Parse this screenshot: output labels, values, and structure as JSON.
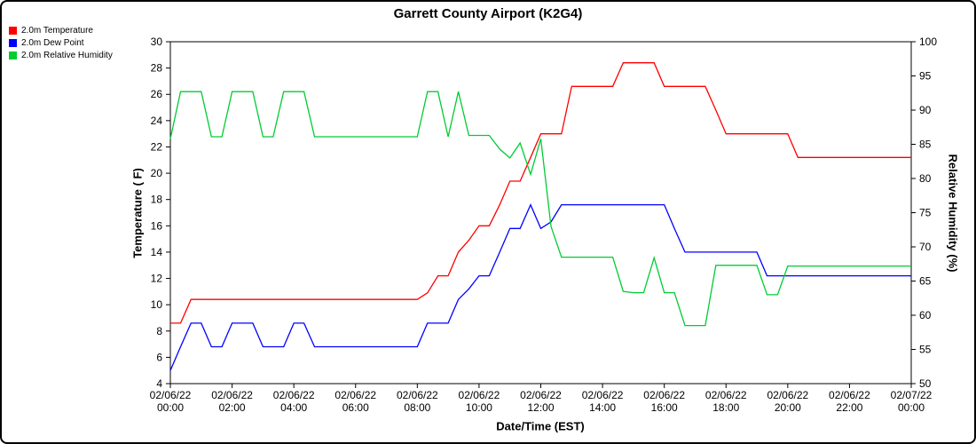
{
  "chart_data": {
    "type": "line",
    "title": "Garrett County Airport (K2G4)",
    "x_axis": {
      "label": "Date/Time (EST)",
      "range_hours": [
        0,
        24
      ],
      "tick_interval_hours": 2,
      "ticks": [
        {
          "date": "02/06/22",
          "time": "00:00"
        },
        {
          "date": "02/06/22",
          "time": "02:00"
        },
        {
          "date": "02/06/22",
          "time": "04:00"
        },
        {
          "date": "02/06/22",
          "time": "06:00"
        },
        {
          "date": "02/06/22",
          "time": "08:00"
        },
        {
          "date": "02/06/22",
          "time": "10:00"
        },
        {
          "date": "02/06/22",
          "time": "12:00"
        },
        {
          "date": "02/06/22",
          "time": "14:00"
        },
        {
          "date": "02/06/22",
          "time": "16:00"
        },
        {
          "date": "02/06/22",
          "time": "18:00"
        },
        {
          "date": "02/06/22",
          "time": "20:00"
        },
        {
          "date": "02/06/22",
          "time": "22:00"
        },
        {
          "date": "02/07/22",
          "time": "00:00"
        }
      ]
    },
    "left_axis": {
      "label": "Temperature ( F)",
      "min": 4,
      "max": 30,
      "tick_step": 2
    },
    "right_axis": {
      "label": "Relative Humidity (%)",
      "min": 50,
      "max": 100,
      "tick_step": 5
    },
    "times_hours": [
      0,
      0.33,
      0.67,
      1,
      1.33,
      1.67,
      2,
      2.33,
      2.67,
      3,
      3.33,
      3.67,
      4,
      4.33,
      4.67,
      5,
      5.33,
      5.67,
      6,
      6.33,
      6.67,
      7,
      7.33,
      7.67,
      8,
      8.33,
      8.67,
      9,
      9.33,
      9.67,
      10,
      10.33,
      10.67,
      11,
      11.33,
      11.67,
      12,
      12.33,
      12.67,
      13,
      13.33,
      13.67,
      14,
      14.33,
      14.67,
      15,
      15.33,
      15.67,
      16,
      16.33,
      16.67,
      17,
      17.33,
      17.67,
      18,
      18.33,
      18.67,
      19,
      19.33,
      19.67,
      20,
      20.33,
      20.67,
      21,
      21.33,
      21.67,
      22,
      22.33,
      22.67,
      23,
      23.33,
      23.67,
      24
    ],
    "series": [
      {
        "name": "2.0m Temperature",
        "color": "#ff0000",
        "axis": "left",
        "values": [
          8.6,
          8.6,
          10.4,
          10.4,
          10.4,
          10.4,
          10.4,
          10.4,
          10.4,
          10.4,
          10.4,
          10.4,
          10.4,
          10.4,
          10.4,
          10.4,
          10.4,
          10.4,
          10.4,
          10.4,
          10.4,
          10.4,
          10.4,
          10.4,
          10.4,
          10.9,
          12.2,
          12.2,
          14.0,
          14.9,
          16.0,
          16.0,
          17.6,
          19.4,
          19.4,
          21.2,
          23.0,
          23.0,
          23.0,
          26.6,
          26.6,
          26.6,
          26.6,
          26.6,
          28.4,
          28.4,
          28.4,
          28.4,
          26.6,
          26.6,
          26.6,
          26.6,
          26.6,
          24.8,
          23.0,
          23.0,
          23.0,
          23.0,
          23.0,
          23.0,
          23.0,
          21.2,
          21.2,
          21.2,
          21.2,
          21.2,
          21.2,
          21.2,
          21.2,
          21.2,
          21.2,
          21.2,
          21.2
        ]
      },
      {
        "name": "2.0m Dew Point",
        "color": "#0000ff",
        "axis": "left",
        "values": [
          5.0,
          6.8,
          8.6,
          8.6,
          6.8,
          6.8,
          8.6,
          8.6,
          8.6,
          6.8,
          6.8,
          6.8,
          8.6,
          8.6,
          6.8,
          6.8,
          6.8,
          6.8,
          6.8,
          6.8,
          6.8,
          6.8,
          6.8,
          6.8,
          6.8,
          8.6,
          8.6,
          8.6,
          10.4,
          11.2,
          12.2,
          12.2,
          14.0,
          15.8,
          15.8,
          17.6,
          15.8,
          16.3,
          17.6,
          17.6,
          17.6,
          17.6,
          17.6,
          17.6,
          17.6,
          17.6,
          17.6,
          17.6,
          17.6,
          15.8,
          14.0,
          14.0,
          14.0,
          14.0,
          14.0,
          14.0,
          14.0,
          14.0,
          12.2,
          12.2,
          12.2,
          12.2,
          12.2,
          12.2,
          12.2,
          12.2,
          12.2,
          12.2,
          12.2,
          12.2,
          12.2,
          12.2,
          12.2
        ]
      },
      {
        "name": "2.0m Relative Humidity",
        "color": "#00cc33",
        "axis": "right",
        "values": [
          85.8,
          92.7,
          92.7,
          92.7,
          86.1,
          86.1,
          92.7,
          92.7,
          92.7,
          86.1,
          86.1,
          92.7,
          92.7,
          92.7,
          86.1,
          86.1,
          86.1,
          86.1,
          86.1,
          86.1,
          86.1,
          86.1,
          86.1,
          86.1,
          86.1,
          92.7,
          92.7,
          86.1,
          92.7,
          86.3,
          86.3,
          86.3,
          84.3,
          83.0,
          85.2,
          80.6,
          85.8,
          73.0,
          68.5,
          68.5,
          68.5,
          68.5,
          68.5,
          68.5,
          63.5,
          63.3,
          63.3,
          68.4,
          63.3,
          63.3,
          58.5,
          58.5,
          58.5,
          67.3,
          67.3,
          67.3,
          67.3,
          67.3,
          63.0,
          63.0,
          67.2,
          67.2,
          67.2,
          67.2,
          67.2,
          67.2,
          67.2,
          67.2,
          67.2,
          67.2,
          67.2,
          67.2,
          67.2
        ]
      }
    ]
  }
}
